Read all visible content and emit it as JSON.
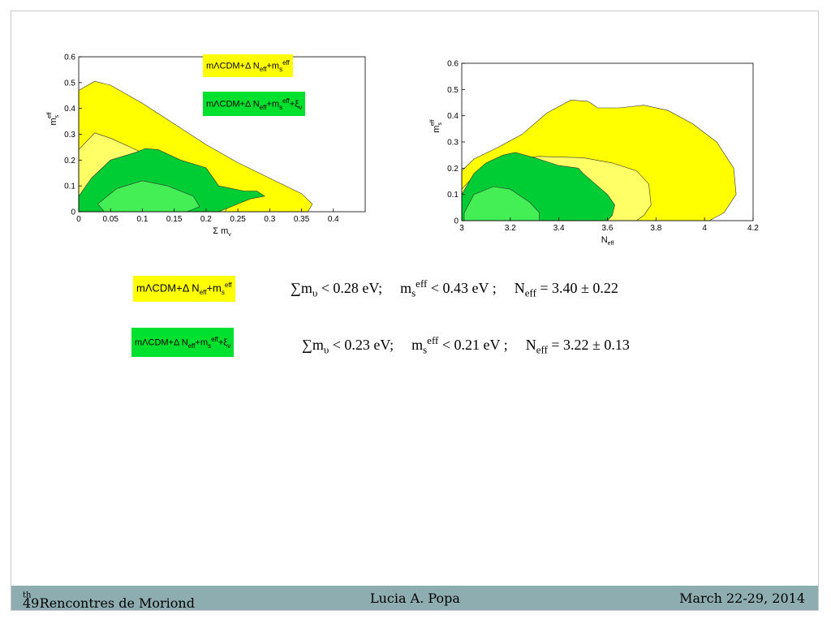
{
  "chart_data": [
    {
      "type": "contour",
      "xlabel": "Σ m_ν",
      "ylabel": "m_s^eff",
      "xlim": [
        0,
        0.45
      ],
      "ylim": [
        0,
        0.6
      ],
      "x_ticks": [
        "0",
        "0.05",
        "0.1",
        "0.15",
        "0.2",
        "0.25",
        "0.3",
        "0.35",
        "0.4"
      ],
      "y_ticks": [
        "0",
        "0.1",
        "0.2",
        "0.3",
        "0.4",
        "0.5",
        "0.6"
      ],
      "series": [
        {
          "name": "mΛCDM+Δ N_eff+m_s^eff",
          "color": "#ffff00",
          "regions": [
            {
              "level": "95%",
              "color": "#ffff00",
              "points": [
                [
                  0,
                  0.47
                ],
                [
                  0.025,
                  0.505
                ],
                [
                  0.05,
                  0.49
                ],
                [
                  0.1,
                  0.42
                ],
                [
                  0.15,
                  0.34
                ],
                [
                  0.2,
                  0.26
                ],
                [
                  0.25,
                  0.19
                ],
                [
                  0.3,
                  0.13
                ],
                [
                  0.35,
                  0.07
                ],
                [
                  0.367,
                  0.03
                ],
                [
                  0.36,
                  0.0
                ],
                [
                  0,
                  0
                ]
              ]
            },
            {
              "level": "68%",
              "color": "#ffff66",
              "points": [
                [
                  0,
                  0.24
                ],
                [
                  0.025,
                  0.305
                ],
                [
                  0.05,
                  0.285
                ],
                [
                  0.09,
                  0.24
                ],
                [
                  0.14,
                  0.18
                ],
                [
                  0.2,
                  0.11
                ],
                [
                  0.24,
                  0.05
                ],
                [
                  0.23,
                  0.0
                ],
                [
                  0,
                  0
                ]
              ]
            }
          ]
        },
        {
          "name": "mΛCDM+Δ N_eff+m_s^eff+ξ_ν",
          "color": "#00dd33",
          "regions": [
            {
              "level": "95%",
              "color": "#00cc33",
              "points": [
                [
                  0,
                  0.06
                ],
                [
                  0.02,
                  0.13
                ],
                [
                  0.05,
                  0.2
                ],
                [
                  0.09,
                  0.23
                ],
                [
                  0.105,
                  0.245
                ],
                [
                  0.125,
                  0.24
                ],
                [
                  0.16,
                  0.2
                ],
                [
                  0.2,
                  0.17
                ],
                [
                  0.22,
                  0.1
                ],
                [
                  0.26,
                  0.08
                ],
                [
                  0.28,
                  0.08
                ],
                [
                  0.292,
                  0.06
                ],
                [
                  0.27,
                  0.05
                ],
                [
                  0.25,
                  0.03
                ],
                [
                  0.22,
                  0.0
                ],
                [
                  0,
                  0
                ]
              ]
            },
            {
              "level": "68%",
              "color": "#44ee55",
              "points": [
                [
                  0.03,
                  0.03
                ],
                [
                  0.06,
                  0.09
                ],
                [
                  0.1,
                  0.12
                ],
                [
                  0.14,
                  0.1
                ],
                [
                  0.18,
                  0.06
                ],
                [
                  0.19,
                  0.02
                ],
                [
                  0.17,
                  0.0
                ],
                [
                  0.04,
                  0.0
                ]
              ]
            }
          ]
        }
      ]
    },
    {
      "type": "contour",
      "xlabel": "N_eff",
      "ylabel": "m_s^eff",
      "xlim": [
        3,
        4.2
      ],
      "ylim": [
        0,
        0.6
      ],
      "x_ticks": [
        "3",
        "3.2",
        "3.4",
        "3.6",
        "3.8",
        "4",
        "4.2"
      ],
      "y_ticks": [
        "0",
        "0.1",
        "0.2",
        "0.3",
        "0.4",
        "0.5",
        "0.6"
      ],
      "series": [
        {
          "name": "mΛCDM+Δ N_eff+m_s^eff",
          "color": "#ffff00",
          "regions": [
            {
              "level": "95%",
              "color": "#ffff00",
              "points": [
                [
                  3,
                  0.19
                ],
                [
                  3.05,
                  0.235
                ],
                [
                  3.15,
                  0.28
                ],
                [
                  3.25,
                  0.33
                ],
                [
                  3.35,
                  0.41
                ],
                [
                  3.45,
                  0.46
                ],
                [
                  3.52,
                  0.455
                ],
                [
                  3.56,
                  0.43
                ],
                [
                  3.65,
                  0.43
                ],
                [
                  3.75,
                  0.44
                ],
                [
                  3.85,
                  0.42
                ],
                [
                  3.95,
                  0.37
                ],
                [
                  4.05,
                  0.3
                ],
                [
                  4.12,
                  0.2
                ],
                [
                  4.13,
                  0.1
                ],
                [
                  4.08,
                  0.03
                ],
                [
                  4.02,
                  0.0
                ],
                [
                  3,
                  0
                ]
              ]
            },
            {
              "level": "68%",
              "color": "#ffff66",
              "points": [
                [
                  3,
                  0.12
                ],
                [
                  3.05,
                  0.17
                ],
                [
                  3.12,
                  0.21
                ],
                [
                  3.22,
                  0.235
                ],
                [
                  3.32,
                  0.245
                ],
                [
                  3.5,
                  0.24
                ],
                [
                  3.62,
                  0.22
                ],
                [
                  3.72,
                  0.19
                ],
                [
                  3.77,
                  0.14
                ],
                [
                  3.78,
                  0.06
                ],
                [
                  3.75,
                  0.02
                ],
                [
                  3.72,
                  0.0
                ],
                [
                  3,
                  0
                ]
              ]
            }
          ]
        },
        {
          "name": "mΛCDM+Δ N_eff+m_s^eff+ξ_ν",
          "color": "#00dd33",
          "regions": [
            {
              "level": "95%",
              "color": "#00cc33",
              "points": [
                [
                  3,
                  0.1
                ],
                [
                  3.05,
                  0.18
                ],
                [
                  3.1,
                  0.22
                ],
                [
                  3.17,
                  0.25
                ],
                [
                  3.22,
                  0.26
                ],
                [
                  3.3,
                  0.24
                ],
                [
                  3.4,
                  0.21
                ],
                [
                  3.48,
                  0.2
                ],
                [
                  3.5,
                  0.18
                ],
                [
                  3.55,
                  0.14
                ],
                [
                  3.6,
                  0.1
                ],
                [
                  3.63,
                  0.06
                ],
                [
                  3.62,
                  0.02
                ],
                [
                  3.6,
                  0.0
                ],
                [
                  3,
                  0
                ]
              ]
            },
            {
              "level": "68%",
              "color": "#44ee55",
              "points": [
                [
                  3.01,
                  0.03
                ],
                [
                  3.05,
                  0.1
                ],
                [
                  3.13,
                  0.13
                ],
                [
                  3.2,
                  0.12
                ],
                [
                  3.28,
                  0.07
                ],
                [
                  3.32,
                  0.03
                ],
                [
                  3.32,
                  0.0
                ],
                [
                  3.01,
                  0.0
                ]
              ]
            }
          ]
        }
      ]
    }
  ],
  "plot_left": {
    "legend1": {
      "base": "mΛCDM+Δ N",
      "sub1": "eff",
      "mid": "+m",
      "sub2": "s",
      "sup2": "eff"
    },
    "legend2": {
      "base": "mΛCDM+Δ N",
      "sub1": "eff",
      "mid": "+m",
      "sub2": "s",
      "sup2": "eff",
      "tail": "+ξ",
      "sub3": "ν"
    }
  },
  "equations": [
    {
      "legend": {
        "base": "mΛCDM+Δ N",
        "sub1": "eff",
        "mid": "+m",
        "sub2": "s",
        "sup2": "eff",
        "tail": ""
      },
      "sum": "∑m",
      "sum_sub": "υ",
      "sum_val": " < 0.28 eV;",
      "ms": "m",
      "ms_sub": "s",
      "ms_sup": "eff",
      "ms_val": " < 0.43 eV ;",
      "neff": "N",
      "neff_sub": "eff",
      "neff_val": " = 3.40 ± 0.22"
    },
    {
      "legend": {
        "base": "mΛCDM+Δ N",
        "sub1": "eff",
        "mid": "+m",
        "sub2": "s",
        "sup2": "eff",
        "tail": "+ξ",
        "sub3": "ν"
      },
      "sum": "∑m",
      "sum_sub": "υ",
      "sum_val": " < 0.23 eV;",
      "ms": "m",
      "ms_sub": "s",
      "ms_sup": "eff",
      "ms_val": " < 0.21 eV ;",
      "neff": "N",
      "neff_sub": "eff",
      "neff_val": " = 3.22 ± 0.13"
    }
  ],
  "footer": {
    "left_num": "49",
    "left_sup": "th",
    "left_text": "  Rencontres de Moriond",
    "center": "Lucia A. Popa",
    "right": "March 22-29, 2014"
  }
}
